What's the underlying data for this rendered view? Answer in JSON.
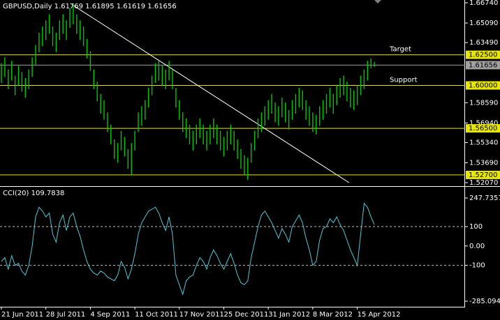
{
  "chart_data": [
    {
      "type": "hilo",
      "title": "GBPUSD,Daily  1.61769 1.61895 1.61619 1.61656",
      "color": "#00c800",
      "ylim": [
        1.5207,
        1.6674
      ],
      "yticks": [
        {
          "value": 1.6674,
          "label": "1.66740"
        },
        {
          "value": 1.6509,
          "label": "1.65090"
        },
        {
          "value": 1.6349,
          "label": "1.63490"
        },
        {
          "value": 1.5859,
          "label": "1.58590"
        },
        {
          "value": 1.5694,
          "label": "1.56940"
        },
        {
          "value": 1.5534,
          "label": "1.55340"
        },
        {
          "value": 1.5369,
          "label": "1.53690"
        },
        {
          "value": 1.5207,
          "label": "1.52070"
        }
      ],
      "hlines": [
        {
          "value": 1.625,
          "label": "1.62500",
          "color": "#e6e600",
          "note": "Target"
        },
        {
          "value": 1.61656,
          "label": "1.61656",
          "color": "#a0a0a0"
        },
        {
          "value": 1.6,
          "label": "1.60000",
          "color": "#e6e600",
          "note": "Support"
        },
        {
          "value": 1.565,
          "label": "1.56500",
          "color": "#e6e600"
        },
        {
          "value": 1.527,
          "label": "1.52700",
          "color": "#e6e600"
        }
      ],
      "trendline": {
        "x": [
          20.6,
          101.6
        ],
        "y": [
          1.666,
          1.5207
        ],
        "color": "#ffffff"
      },
      "high": [
        1.618,
        1.623,
        1.613,
        1.62,
        1.608,
        1.616,
        1.611,
        1.606,
        1.613,
        1.623,
        1.633,
        1.643,
        1.648,
        1.653,
        1.658,
        1.648,
        1.643,
        1.653,
        1.658,
        1.653,
        1.663,
        1.666,
        1.658,
        1.653,
        1.648,
        1.638,
        1.628,
        1.613,
        1.603,
        1.593,
        1.588,
        1.578,
        1.568,
        1.556,
        1.553,
        1.563,
        1.558,
        1.548,
        1.553,
        1.563,
        1.578,
        1.583,
        1.588,
        1.598,
        1.608,
        1.618,
        1.62,
        1.616,
        1.613,
        1.62,
        1.613,
        1.598,
        1.588,
        1.578,
        1.573,
        1.568,
        1.563,
        1.568,
        1.573,
        1.568,
        1.563,
        1.568,
        1.573,
        1.568,
        1.563,
        1.558,
        1.563,
        1.568,
        1.563,
        1.556,
        1.548,
        1.543,
        1.541,
        1.553,
        1.563,
        1.573,
        1.578,
        1.583,
        1.588,
        1.593,
        1.586,
        1.583,
        1.59,
        1.586,
        1.58,
        1.588,
        1.593,
        1.598,
        1.596,
        1.588,
        1.583,
        1.578,
        1.576,
        1.583,
        1.588,
        1.593,
        1.598,
        1.593,
        1.6,
        1.606,
        1.608,
        1.603,
        1.598,
        1.596,
        1.6,
        1.608,
        1.613,
        1.62,
        1.622,
        1.619
      ],
      "low": [
        1.602,
        1.607,
        1.597,
        1.604,
        1.592,
        1.6,
        1.595,
        1.59,
        1.597,
        1.607,
        1.617,
        1.627,
        1.632,
        1.637,
        1.642,
        1.632,
        1.627,
        1.637,
        1.642,
        1.637,
        1.647,
        1.65,
        1.642,
        1.637,
        1.632,
        1.622,
        1.612,
        1.597,
        1.587,
        1.577,
        1.572,
        1.562,
        1.552,
        1.54,
        1.537,
        1.547,
        1.542,
        1.532,
        1.527,
        1.547,
        1.562,
        1.567,
        1.572,
        1.582,
        1.592,
        1.602,
        1.604,
        1.6,
        1.597,
        1.604,
        1.597,
        1.582,
        1.572,
        1.562,
        1.557,
        1.552,
        1.547,
        1.552,
        1.557,
        1.552,
        1.547,
        1.552,
        1.557,
        1.552,
        1.547,
        1.542,
        1.547,
        1.552,
        1.547,
        1.54,
        1.532,
        1.527,
        1.523,
        1.537,
        1.547,
        1.557,
        1.562,
        1.567,
        1.572,
        1.577,
        1.57,
        1.567,
        1.574,
        1.57,
        1.564,
        1.572,
        1.577,
        1.582,
        1.58,
        1.572,
        1.567,
        1.562,
        1.56,
        1.567,
        1.572,
        1.577,
        1.582,
        1.577,
        1.584,
        1.59,
        1.592,
        1.587,
        1.582,
        1.58,
        1.584,
        1.592,
        1.597,
        1.604,
        1.614,
        1.615
      ]
    },
    {
      "type": "line",
      "title": "CCI(20) 109.7838",
      "color": "#4fc8d8",
      "ylim": [
        -285.094,
        247.7357
      ],
      "yticks": [
        247.7357,
        100,
        {
          "value": 0,
          "label": "0.00"
        },
        -100,
        -285.094
      ],
      "levels": [
        100,
        -100
      ],
      "categories": [
        "21 Jun 2011",
        null,
        null,
        null,
        null,
        null,
        null,
        null,
        null,
        null,
        null,
        null,
        null,
        "28 Jul 2011",
        null,
        null,
        null,
        null,
        null,
        null,
        null,
        null,
        null,
        null,
        null,
        null,
        "4 Sep 2011",
        null,
        null,
        null,
        null,
        null,
        null,
        null,
        null,
        null,
        null,
        null,
        null,
        "11 Oct 2011",
        null,
        null,
        null,
        null,
        null,
        null,
        null,
        null,
        null,
        null,
        null,
        null,
        "17 Nov 2011",
        null,
        null,
        null,
        null,
        null,
        null,
        null,
        null,
        null,
        null,
        null,
        null,
        "25 Dec 2011",
        null,
        null,
        null,
        null,
        null,
        null,
        null,
        null,
        null,
        null,
        null,
        null,
        "31 Jan 2012",
        null,
        null,
        null,
        null,
        null,
        null,
        null,
        null,
        null,
        null,
        null,
        null,
        "8 Mar 2012",
        null,
        null,
        null,
        null,
        null,
        null,
        null,
        null,
        null,
        null,
        null,
        null,
        "15 Apr 2012",
        null,
        null,
        null,
        null,
        null
      ],
      "values": [
        -80,
        -60,
        -120,
        -50,
        -100,
        -90,
        -130,
        -150,
        -100,
        0,
        150,
        200,
        180,
        150,
        170,
        60,
        20,
        120,
        160,
        80,
        150,
        170,
        100,
        50,
        -20,
        -80,
        -120,
        -140,
        -150,
        -130,
        -140,
        -160,
        -170,
        -180,
        -150,
        -80,
        -110,
        -170,
        -120,
        -40,
        60,
        120,
        150,
        180,
        190,
        200,
        170,
        120,
        80,
        150,
        60,
        -150,
        -200,
        -250,
        -180,
        -160,
        -150,
        -100,
        -60,
        -80,
        -120,
        -60,
        -20,
        -50,
        -90,
        -120,
        -80,
        -40,
        -90,
        -150,
        -190,
        -200,
        -180,
        -60,
        20,
        100,
        160,
        180,
        150,
        120,
        80,
        40,
        90,
        60,
        20,
        100,
        130,
        160,
        120,
        40,
        -20,
        -100,
        -80,
        30,
        90,
        100,
        140,
        120,
        150,
        110,
        80,
        30,
        -20,
        -60,
        -100,
        60,
        220,
        200,
        150,
        110
      ]
    }
  ]
}
